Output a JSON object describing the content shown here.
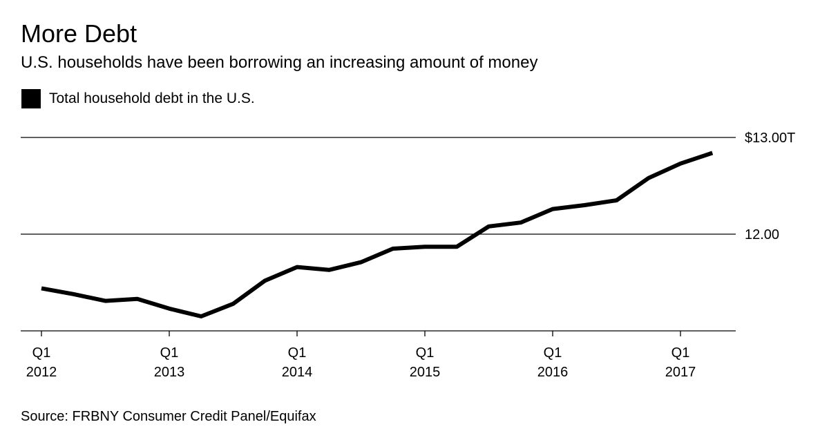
{
  "header": {
    "title": "More Debt",
    "subtitle": "U.S. households have been borrowing an increasing amount of money"
  },
  "legend": {
    "label": "Total household debt in the U.S.",
    "color": "#000000"
  },
  "source": "Source: FRBNY Consumer Credit Panel/Equifax",
  "chart_data": {
    "type": "line",
    "title": "More Debt",
    "subtitle": "U.S. households have been borrowing an increasing amount of money",
    "xlabel": "",
    "ylabel": "",
    "y_unit": "trillion USD",
    "ylim": [
      11.0,
      13.0
    ],
    "y_ticks": [
      {
        "value": 13.0,
        "label": "$13.00T"
      },
      {
        "value": 12.0,
        "label": "12.00"
      }
    ],
    "x_ticks": [
      {
        "x": "2012 Q1",
        "line1": "Q1",
        "line2": "2012"
      },
      {
        "x": "2013 Q1",
        "line1": "Q1",
        "line2": "2013"
      },
      {
        "x": "2014 Q1",
        "line1": "Q1",
        "line2": "2014"
      },
      {
        "x": "2015 Q1",
        "line1": "Q1",
        "line2": "2015"
      },
      {
        "x": "2016 Q1",
        "line1": "Q1",
        "line2": "2016"
      },
      {
        "x": "2017 Q1",
        "line1": "Q1",
        "line2": "2017"
      }
    ],
    "series": [
      {
        "name": "Total household debt in the U.S.",
        "color": "#000000",
        "x": [
          "2012 Q1",
          "2012 Q2",
          "2012 Q3",
          "2012 Q4",
          "2013 Q1",
          "2013 Q2",
          "2013 Q3",
          "2013 Q4",
          "2014 Q1",
          "2014 Q2",
          "2014 Q3",
          "2014 Q4",
          "2015 Q1",
          "2015 Q2",
          "2015 Q3",
          "2015 Q4",
          "2016 Q1",
          "2016 Q2",
          "2016 Q3",
          "2016 Q4",
          "2017 Q1",
          "2017 Q2"
        ],
        "values": [
          11.44,
          11.38,
          11.31,
          11.33,
          11.23,
          11.15,
          11.28,
          11.52,
          11.66,
          11.63,
          11.71,
          11.85,
          11.87,
          11.87,
          12.08,
          12.12,
          12.26,
          12.3,
          12.35,
          12.58,
          12.73,
          12.84
        ]
      }
    ],
    "grid": true,
    "legend_position": "top-left"
  }
}
